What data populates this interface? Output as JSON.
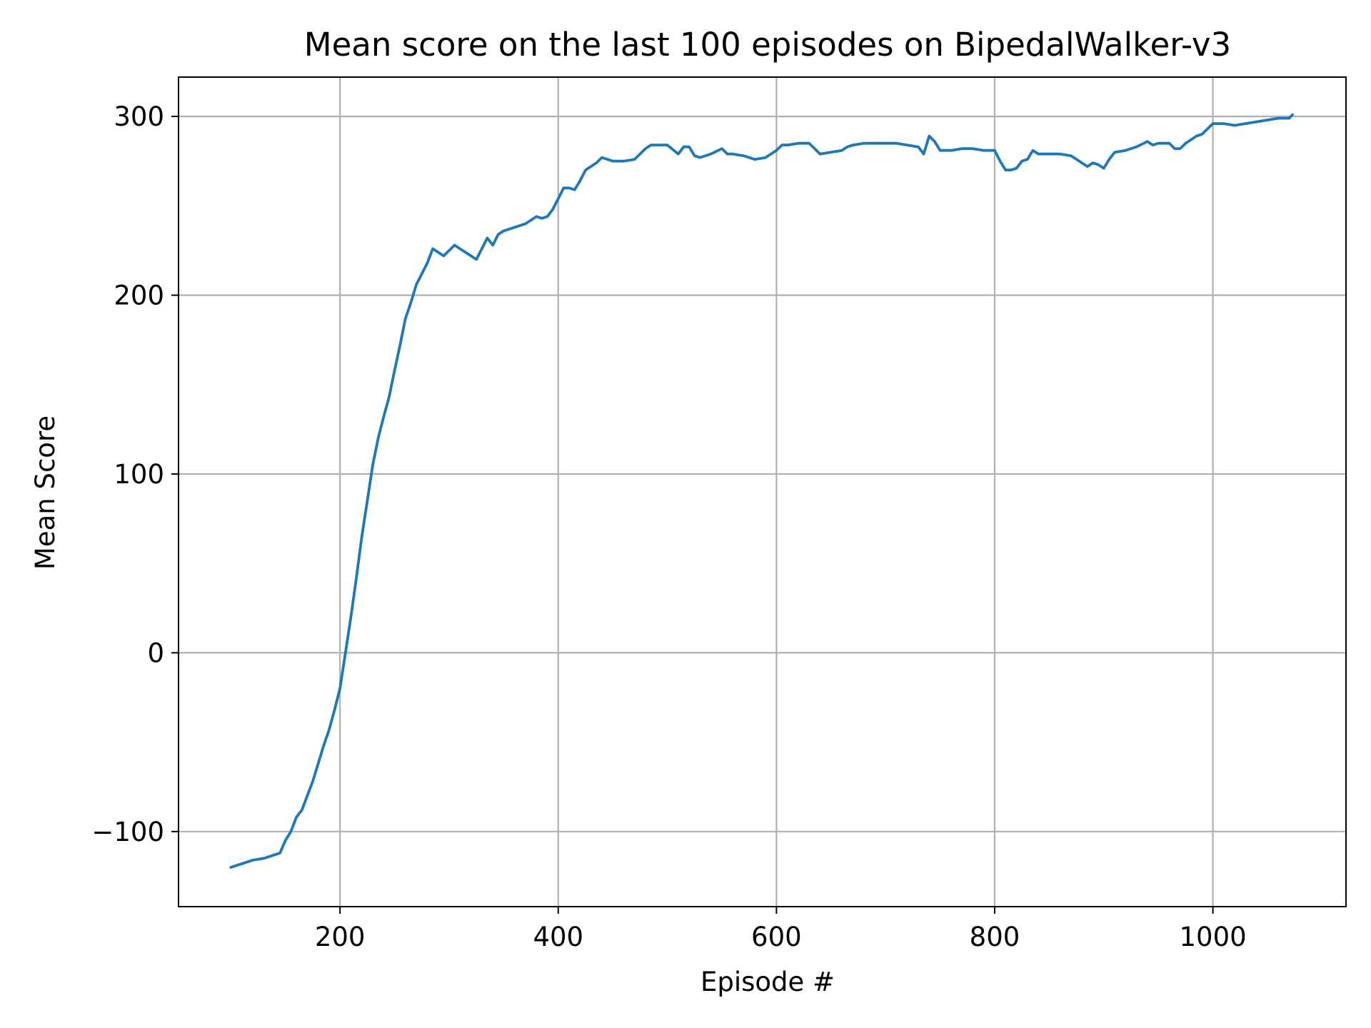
{
  "chart_data": {
    "type": "line",
    "title": "Mean score on the last 100 episodes on BipedalWalker-v3",
    "xlabel": "Episode #",
    "ylabel": "Mean Score",
    "xlim": [
      52,
      1122
    ],
    "ylim": [
      -142,
      322
    ],
    "xticks": [
      200,
      400,
      600,
      800,
      1000
    ],
    "xtick_labels": [
      "200",
      "400",
      "600",
      "800",
      "1000"
    ],
    "yticks": [
      -100,
      0,
      100,
      200,
      300
    ],
    "ytick_labels": [
      "−100",
      "0",
      "100",
      "200",
      "300"
    ],
    "grid": true,
    "legend": "none",
    "series": [
      {
        "color": "#1f77b4",
        "x": [
          100,
          110,
          120,
          130,
          140,
          145,
          150,
          155,
          160,
          165,
          170,
          175,
          180,
          185,
          190,
          195,
          200,
          205,
          210,
          215,
          220,
          225,
          230,
          235,
          240,
          245,
          250,
          255,
          260,
          265,
          270,
          275,
          280,
          285,
          290,
          295,
          300,
          305,
          310,
          320,
          325,
          330,
          335,
          340,
          345,
          350,
          360,
          370,
          380,
          385,
          390,
          395,
          400,
          405,
          410,
          415,
          420,
          425,
          430,
          435,
          440,
          450,
          460,
          470,
          480,
          485,
          490,
          500,
          510,
          515,
          520,
          525,
          530,
          540,
          550,
          555,
          560,
          570,
          580,
          590,
          600,
          605,
          610,
          620,
          630,
          635,
          640,
          650,
          660,
          665,
          670,
          680,
          690,
          700,
          710,
          720,
          730,
          735,
          740,
          745,
          750,
          760,
          770,
          780,
          790,
          800,
          805,
          810,
          815,
          820,
          825,
          830,
          835,
          840,
          845,
          850,
          860,
          870,
          880,
          885,
          890,
          895,
          900,
          905,
          910,
          920,
          930,
          940,
          945,
          950,
          960,
          965,
          970,
          975,
          980,
          985,
          990,
          1000,
          1010,
          1020,
          1030,
          1040,
          1050,
          1060,
          1070,
          1073
        ],
        "y": [
          -120,
          -118,
          -116,
          -115,
          -113,
          -112,
          -105,
          -100,
          -92,
          -88,
          -80,
          -72,
          -62,
          -52,
          -43,
          -32,
          -20,
          0,
          20,
          42,
          65,
          85,
          105,
          120,
          132,
          143,
          158,
          172,
          187,
          196,
          206,
          212,
          218,
          226,
          224,
          222,
          225,
          228,
          226,
          222,
          220,
          226,
          232,
          228,
          234,
          236,
          238,
          240,
          244,
          243,
          244,
          248,
          254,
          260,
          260,
          259,
          264,
          270,
          272,
          274,
          277,
          275,
          275,
          276,
          282,
          284,
          284,
          284,
          279,
          283,
          283,
          278,
          277,
          279,
          282,
          279,
          279,
          278,
          276,
          277,
          281,
          284,
          284,
          285,
          285,
          282,
          279,
          280,
          281,
          283,
          284,
          285,
          285,
          285,
          285,
          284,
          283,
          279,
          289,
          286,
          281,
          281,
          282,
          282,
          281,
          281,
          275,
          270,
          270,
          271,
          275,
          276,
          281,
          279,
          279,
          279,
          279,
          278,
          274,
          272,
          274,
          273,
          271,
          276,
          280,
          281,
          283,
          286,
          284,
          285,
          285,
          282,
          282,
          285,
          287,
          289,
          290,
          296,
          296,
          295,
          296,
          297,
          298,
          299,
          299,
          301
        ]
      }
    ]
  }
}
